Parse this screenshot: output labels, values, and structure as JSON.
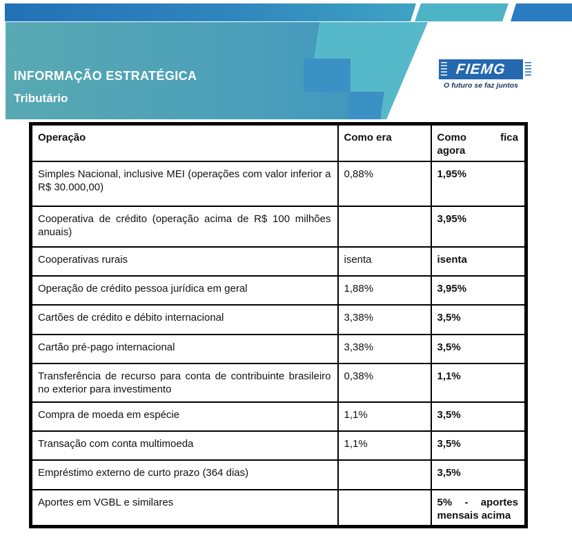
{
  "header": {
    "title": "INFORMAÇÃO ESTRATÉGICA",
    "subtitle": "Tributário",
    "logo": {
      "name": "FIEMG",
      "tagline": "O futuro se faz juntos"
    },
    "colors": {
      "top_bar_blue": "#2271b7",
      "top_bar_teal": "#4db3c7",
      "band_gradient_left": "#58a9b2",
      "band_gradient_right": "#3b90c1",
      "stair_light_teal": "#56b9c9",
      "stair_dark_blue": "#3b91c3",
      "logo_blue": "#2468b0",
      "tagline_navy": "#16355f"
    }
  },
  "table": {
    "columns": [
      "Operação",
      "Como era",
      "Como fica agora"
    ],
    "rows": [
      {
        "op": "Simples Nacional, inclusive MEI (operações com valor inferior a R$ 30.000,00)",
        "era": "0,88%",
        "fica": "1,95%"
      },
      {
        "op": "Cooperativa de crédito (operação acima de R$ 100 milhões anuais)",
        "era": "",
        "fica": "3,95%"
      },
      {
        "op": "Cooperativas rurais",
        "era": "isenta",
        "fica": "isenta"
      },
      {
        "op": "Operação de crédito pessoa jurídica em geral",
        "era": "1,88%",
        "fica": "3,95%"
      },
      {
        "op": "Cartões de crédito e débito internacional",
        "era": "3,38%",
        "fica": "3,5%"
      },
      {
        "op": "Cartão pré-pago internacional",
        "era": "3,38%",
        "fica": "3,5%"
      },
      {
        "op": "Transferência de recurso para conta de contribuinte brasileiro no exterior para investimento",
        "era": "0,38%",
        "fica": "1,1%"
      },
      {
        "op": "Compra de moeda em espécie",
        "era": "1,1%",
        "fica": "3,5%"
      },
      {
        "op": "Transação com conta multimoeda",
        "era": "1,1%",
        "fica": "3,5%"
      },
      {
        "op": "Empréstimo externo de curto prazo (364 dias)",
        "era": "",
        "fica": "3,5%"
      },
      {
        "op": "Aportes em VGBL e similares",
        "era": "",
        "fica": "5% - aportes mensais acima"
      }
    ]
  }
}
